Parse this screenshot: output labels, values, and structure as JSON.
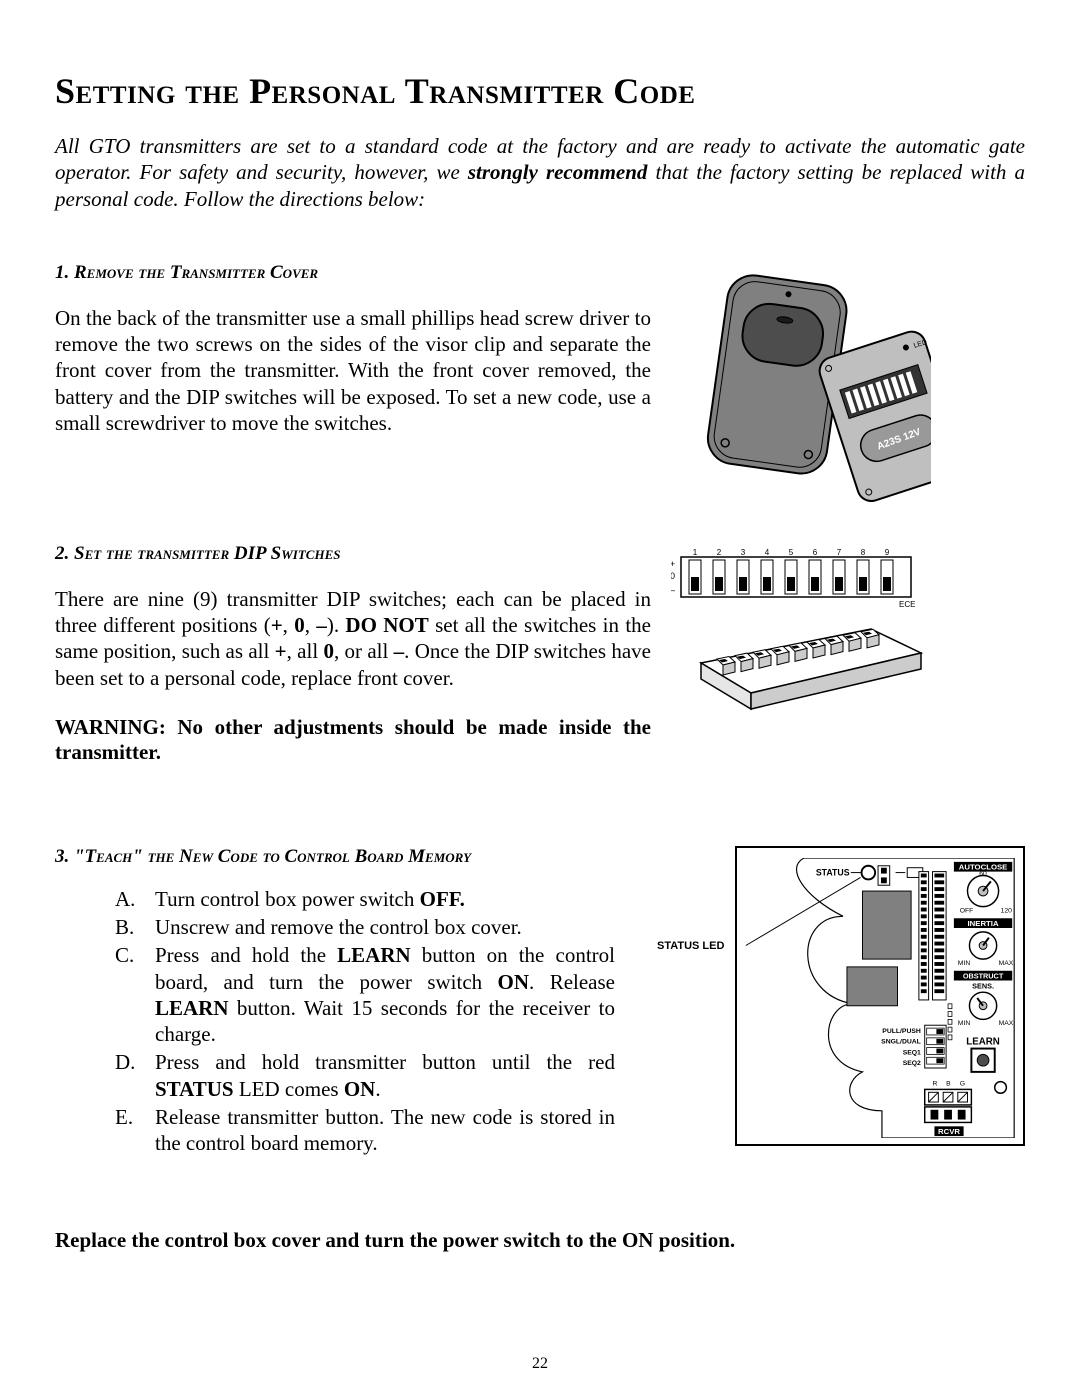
{
  "title": "Setting the Personal Transmitter Code",
  "intro": {
    "pre": "All GTO transmitters are set to a standard code at the factory and are ready to activate the automatic gate operator. For safety and security, however, we ",
    "strong": "strongly recommend",
    "post": " that the factory setting be replaced with a personal code.  Follow the directions below:"
  },
  "step1": {
    "heading": "1.  Remove the Transmitter Cover",
    "body": "On the back of the transmitter use a small phillips head screw driver to remove the two screws on the sides of the visor clip and separate the front cover from the transmitter.  With the front cover removed, the battery and the DIP switches will be exposed.  To set a new code, use a small screwdriver to move the switches."
  },
  "step2": {
    "heading": "2.  Set the transmitter DIP Switches",
    "body_parts": [
      "There are nine (9) transmitter DIP switches; each can be placed in three different positions (",
      "+",
      ", ",
      "0",
      ", ",
      "–",
      ").  ",
      "DO NOT",
      " set all the switches in the same position, such as all ",
      "+",
      ", all ",
      "0",
      ", or all ",
      "–",
      ".  Once the DIP switches have been set to a personal code, replace front cover."
    ],
    "warning": "WARNING: No other adjustments should be made inside the transmitter."
  },
  "step3": {
    "heading": "3.  \"Teach\" the New Code to Control Board Memory",
    "items": [
      {
        "letter": "A.",
        "pre": "Turn control box power switch ",
        "b1": "OFF.",
        "post": ""
      },
      {
        "letter": "B.",
        "pre": "Unscrew and remove the control box cover.",
        "b1": "",
        "post": ""
      },
      {
        "letter": "C.",
        "pre": "Press and hold the ",
        "b1": "LEARN",
        "mid": " button on the control board, and turn the power switch ",
        "b2": "ON",
        "mid2": ".  Release ",
        "b3": "LEARN",
        "post": " button. Wait 15 seconds for the receiver to charge."
      },
      {
        "letter": "D.",
        "pre": "Press and hold transmitter button until the red ",
        "b1": "STATUS",
        "mid": " LED comes ",
        "b2": "ON",
        "post": "."
      },
      {
        "letter": "E.",
        "pre": "Release transmitter button.  The new code is stored in the control board memory.",
        "b1": "",
        "post": ""
      }
    ]
  },
  "final": "Replace the control box cover and turn the power switch to the ON position.",
  "page_number": "22",
  "fig_remote": {
    "body_fill": "#808080",
    "body_stroke": "#000000",
    "button_fill": "#4d4d4d",
    "led_fill": "#000000",
    "pcb_fill": "#bfbfbf",
    "pcb_stroke": "#000000",
    "label_batt": "A23S 12V",
    "label_led": "LED"
  },
  "fig_dip": {
    "numbers": [
      "1",
      "2",
      "3",
      "4",
      "5",
      "6",
      "7",
      "8",
      "9"
    ],
    "plus": "+",
    "zero": "0",
    "minus": "–",
    "ece": "ECE",
    "frame_stroke": "#000000",
    "switch_fill": "#000000",
    "body_fill": "#ffffff"
  },
  "fig_board": {
    "labels": {
      "status": "STATUS",
      "autoclose": "AUTOCLOSE",
      "inertia": "INERTIA",
      "obstruct1": "OBSTRUCT",
      "obstruct2": "SENS.",
      "learn": "LEARN",
      "rcvr": "RCVR",
      "off": "OFF",
      "min": "MIN",
      "max": "MAX",
      "n60": "60",
      "n120": "120",
      "pullpush": "PULL/PUSH",
      "sngl": "SNGL/DUAL",
      "seq1": "SEQ1",
      "seq2": "SEQ2",
      "r": "R",
      "b": "B",
      "g": "G"
    },
    "callout": "STATUS LED",
    "stroke": "#000000",
    "fill_dark": "#808080",
    "fill_mid": "#bfbfbf",
    "fill_white": "#ffffff"
  }
}
